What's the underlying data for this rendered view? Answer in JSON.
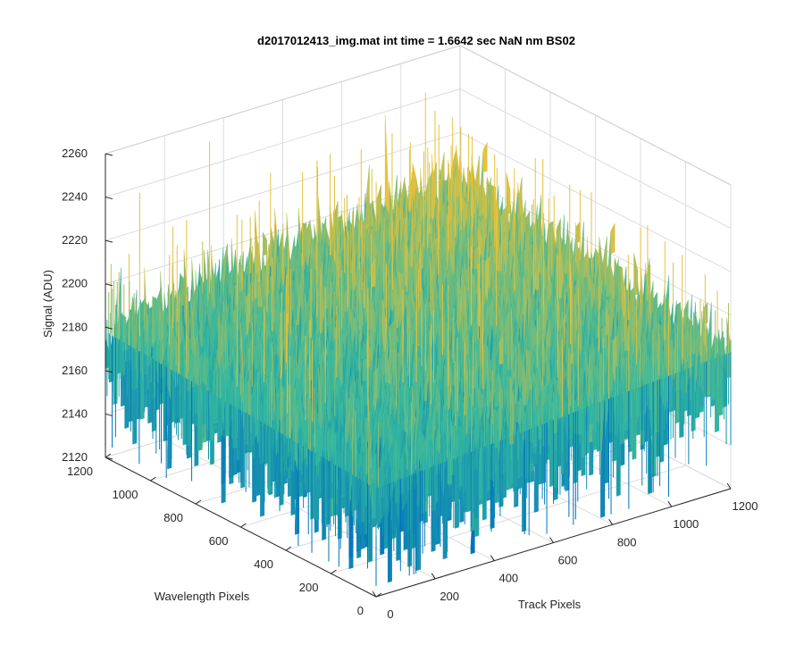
{
  "chart_data": {
    "type": "surface",
    "title": "d2017012413_img.mat int time = 1.6642 sec  NaN nm BS02",
    "xlabel": "Track Pixels",
    "ylabel": "Wavelength Pixels",
    "zlabel": "Signal (ADU)",
    "xlim": [
      0,
      1200
    ],
    "ylim": [
      0,
      1200
    ],
    "zlim": [
      2120,
      2260
    ],
    "x_ticks": [
      "0",
      "200",
      "400",
      "600",
      "800",
      "1000",
      "1200"
    ],
    "y_ticks": [
      "0",
      "200",
      "400",
      "600",
      "800",
      "1000",
      "1200"
    ],
    "z_ticks": [
      "2120",
      "2140",
      "2160",
      "2180",
      "2200",
      "2220",
      "2240",
      "2260"
    ],
    "grid": true,
    "colormap": "parula",
    "colors": {
      "low": "#0072bd",
      "mid": "#33b8a0",
      "high": "#e8c23a"
    },
    "surface_summary": {
      "mean_signal": 2180,
      "min_signal": 2125,
      "max_signal": 2255,
      "corner_levels": {
        "x0_y0": 2170,
        "x1200_y0": 2183,
        "x0_y1200": 2178,
        "x1200_y1200": 2198
      }
    }
  }
}
